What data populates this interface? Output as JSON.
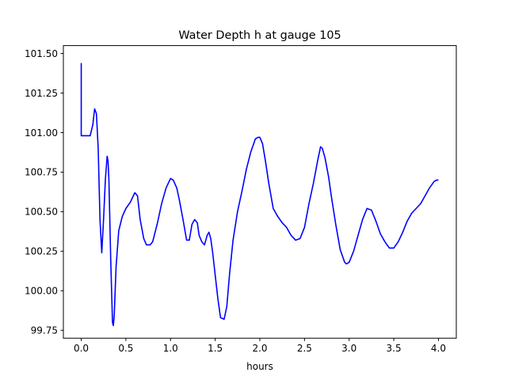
{
  "chart_data": {
    "type": "line",
    "title": "Water Depth h at gauge 105",
    "xlabel": "hours",
    "ylabel": "",
    "xlim": [
      -0.2,
      4.2
    ],
    "ylim": [
      99.7,
      101.55
    ],
    "xticks": [
      0.0,
      0.5,
      1.0,
      1.5,
      2.0,
      2.5,
      3.0,
      3.5,
      4.0
    ],
    "xtick_labels": [
      "0.0",
      "0.5",
      "1.0",
      "1.5",
      "2.0",
      "2.5",
      "3.0",
      "3.5",
      "4.0"
    ],
    "yticks": [
      99.75,
      100.0,
      100.25,
      100.5,
      100.75,
      101.0,
      101.25,
      101.5
    ],
    "ytick_labels": [
      "99.75",
      "100.00",
      "100.25",
      "100.50",
      "100.75",
      "101.00",
      "101.25",
      "101.50"
    ],
    "grid": false,
    "series": [
      {
        "color": "#0000ff",
        "x": [
          0.0,
          0.0,
          0.0,
          0.05,
          0.1,
          0.13,
          0.15,
          0.17,
          0.19,
          0.21,
          0.23,
          0.25,
          0.27,
          0.29,
          0.3,
          0.31,
          0.33,
          0.35,
          0.36,
          0.37,
          0.39,
          0.42,
          0.46,
          0.5,
          0.55,
          0.6,
          0.63,
          0.66,
          0.7,
          0.73,
          0.77,
          0.8,
          0.85,
          0.9,
          0.95,
          1.0,
          1.03,
          1.07,
          1.1,
          1.14,
          1.18,
          1.21,
          1.24,
          1.27,
          1.3,
          1.32,
          1.35,
          1.38,
          1.41,
          1.43,
          1.45,
          1.47,
          1.5,
          1.53,
          1.56,
          1.6,
          1.63,
          1.66,
          1.7,
          1.75,
          1.8,
          1.85,
          1.9,
          1.95,
          1.98,
          2.0,
          2.03,
          2.06,
          2.1,
          2.15,
          2.2,
          2.25,
          2.3,
          2.35,
          2.4,
          2.45,
          2.5,
          2.55,
          2.6,
          2.65,
          2.68,
          2.7,
          2.73,
          2.77,
          2.8,
          2.85,
          2.9,
          2.95,
          2.97,
          3.0,
          3.05,
          3.1,
          3.15,
          3.2,
          3.25,
          3.3,
          3.35,
          3.4,
          3.45,
          3.5,
          3.55,
          3.6,
          3.65,
          3.7,
          3.75,
          3.8,
          3.85,
          3.9,
          3.95,
          3.98,
          4.0
        ],
        "y": [
          101.44,
          100.98,
          100.98,
          100.98,
          100.98,
          101.05,
          101.15,
          101.12,
          100.9,
          100.45,
          100.24,
          100.45,
          100.7,
          100.85,
          100.82,
          100.7,
          100.2,
          99.8,
          99.78,
          99.85,
          100.15,
          100.38,
          100.47,
          100.52,
          100.56,
          100.62,
          100.6,
          100.45,
          100.33,
          100.29,
          100.29,
          100.31,
          100.42,
          100.55,
          100.65,
          100.71,
          100.7,
          100.65,
          100.57,
          100.45,
          100.32,
          100.32,
          100.42,
          100.45,
          100.43,
          100.35,
          100.31,
          100.29,
          100.35,
          100.37,
          100.33,
          100.25,
          100.1,
          99.95,
          99.83,
          99.82,
          99.9,
          100.1,
          100.32,
          100.5,
          100.63,
          100.77,
          100.88,
          100.96,
          100.97,
          100.97,
          100.93,
          100.83,
          100.68,
          100.52,
          100.47,
          100.43,
          100.4,
          100.35,
          100.32,
          100.33,
          100.4,
          100.55,
          100.68,
          100.83,
          100.91,
          100.9,
          100.84,
          100.72,
          100.6,
          100.42,
          100.26,
          100.18,
          100.17,
          100.18,
          100.25,
          100.35,
          100.45,
          100.52,
          100.51,
          100.44,
          100.36,
          100.31,
          100.27,
          100.27,
          100.31,
          100.37,
          100.44,
          100.49,
          100.52,
          100.55,
          100.6,
          100.65,
          100.69,
          100.7,
          100.7
        ]
      }
    ]
  }
}
